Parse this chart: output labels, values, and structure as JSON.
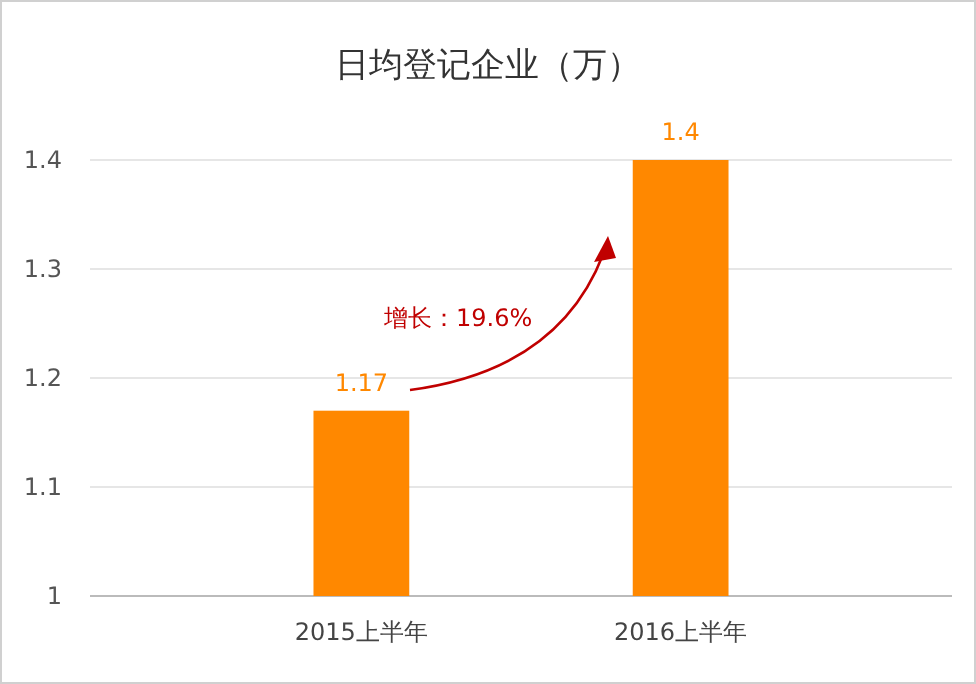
{
  "chart_data": {
    "type": "bar",
    "title": "日均登记企业（万）",
    "categories": [
      "2015上半年",
      "2016上半年"
    ],
    "values": [
      1.17,
      1.4
    ],
    "color": "#ff8800",
    "ylim": [
      1,
      1.4
    ],
    "yticks": [
      1,
      1.1,
      1.2,
      1.3,
      1.4
    ],
    "grid": "y",
    "data_labels": true,
    "annotations": [
      "增长：19.6%"
    ]
  }
}
